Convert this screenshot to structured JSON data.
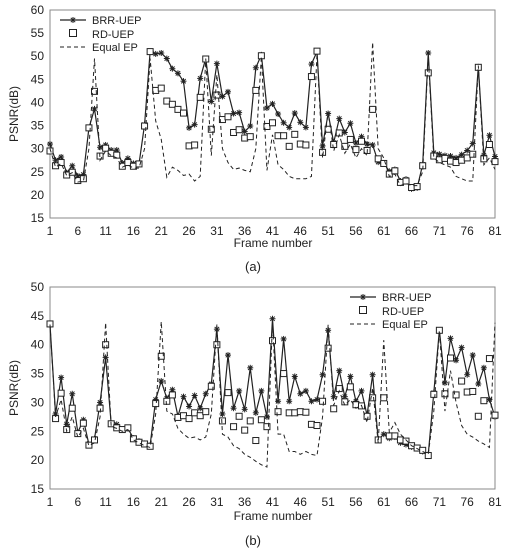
{
  "chart_data": [
    {
      "type": "line",
      "xlabel": "Frame number",
      "ylabel": "PSNR(dB)",
      "xlim": [
        1,
        81
      ],
      "ylim": [
        15,
        60
      ],
      "yticks": [
        15,
        20,
        25,
        30,
        35,
        40,
        45,
        50,
        55,
        60
      ],
      "xticks": [
        1,
        6,
        11,
        16,
        21,
        26,
        31,
        36,
        41,
        46,
        51,
        56,
        61,
        66,
        71,
        76,
        81
      ],
      "caption": "(a)",
      "legend_position": "top-left",
      "grid": false,
      "series": [
        {
          "name": "BRR-UEP",
          "style": "line-star",
          "color": "#222222",
          "values": [
            31.0,
            27.5,
            28.2,
            24.8,
            26.3,
            24.1,
            24.4,
            34.5,
            38.6,
            30.3,
            30.8,
            29.7,
            29.7,
            26.9,
            27.9,
            26.8,
            26.7,
            35.2,
            51.0,
            50.5,
            50.7,
            49.5,
            47.3,
            46.3,
            44.6,
            34.5,
            35.2,
            45.2,
            49.5,
            40.2,
            48.4,
            41.3,
            42.3,
            37.6,
            37.8,
            33.7,
            34.9,
            47.5,
            50.3,
            38.8,
            39.7,
            37.5,
            35.6,
            34.6,
            37.7,
            35.7,
            34.6,
            48.3,
            51.0,
            30.6,
            37.6,
            31.3,
            36.5,
            33.5,
            35.5,
            31.2,
            32.6,
            31.0,
            30.8,
            27.1,
            26.9,
            25.1,
            25.5,
            23.0,
            23.4,
            21.3,
            21.5,
            26.6,
            50.7,
            29.1,
            28.8,
            28.5,
            28.4,
            28.0,
            28.7,
            29.6,
            31.1,
            47.7,
            28.6,
            32.9,
            28.3
          ]
        },
        {
          "name": "RD-UEP",
          "style": "markers-square",
          "color": "#222222",
          "values": [
            29.5,
            26.3,
            27.0,
            24.3,
            24.9,
            23.1,
            23.5,
            34.5,
            42.4,
            28.4,
            30.1,
            29.0,
            28.6,
            26.2,
            27.0,
            26.2,
            26.7,
            34.9,
            51.0,
            42.6,
            43.1,
            40.3,
            39.6,
            38.5,
            37.7,
            30.6,
            30.8,
            41.1,
            49.4,
            34.2,
            41.6,
            36.3,
            36.9,
            33.5,
            34.1,
            32.3,
            32.6,
            42.6,
            50.1,
            34.8,
            35.6,
            32.8,
            32.8,
            30.5,
            33.1,
            31.0,
            30.8,
            45.6,
            51.1,
            29.2,
            34.2,
            30.9,
            33.4,
            30.5,
            32.0,
            29.8,
            31.6,
            29.6,
            38.5,
            27.8,
            26.8,
            24.5,
            25.2,
            22.7,
            23.0,
            21.6,
            21.8,
            26.3,
            46.4,
            28.4,
            27.6,
            27.9,
            27.3,
            27.0,
            27.5,
            28.0,
            28.8,
            47.6,
            27.8,
            30.9,
            27.2
          ]
        },
        {
          "name": "Equal EP",
          "style": "dashed",
          "color": "#222222",
          "values": [
            30.0,
            26.0,
            26.8,
            24.2,
            24.8,
            22.8,
            22.9,
            30.0,
            49.5,
            27.5,
            29.5,
            28.5,
            28.0,
            26.0,
            26.5,
            25.8,
            25.8,
            30.0,
            49.5,
            36.0,
            32.0,
            23.8,
            26.0,
            25.3,
            24.2,
            24.5,
            23.0,
            24.0,
            49.5,
            28.5,
            46.0,
            30.0,
            27.0,
            25.5,
            25.8,
            25.3,
            25.0,
            30.0,
            50.0,
            25.3,
            33.0,
            26.5,
            25.5,
            24.0,
            23.5,
            23.5,
            23.5,
            24.0,
            50.5,
            28.0,
            38.0,
            29.5,
            33.0,
            29.0,
            31.0,
            28.0,
            30.0,
            28.5,
            53.0,
            30.0,
            28.0,
            24.0,
            24.5,
            22.0,
            22.5,
            22.0,
            22.0,
            25.0,
            50.0,
            28.0,
            27.0,
            26.5,
            26.0,
            24.0,
            23.5,
            23.0,
            23.0,
            48.0,
            26.5,
            28.0,
            25.5
          ]
        }
      ]
    },
    {
      "type": "line",
      "xlabel": "Frame number",
      "ylabel": "PSNR(dB)",
      "xlim": [
        1,
        81
      ],
      "ylim": [
        15,
        50
      ],
      "yticks": [
        15,
        20,
        25,
        30,
        35,
        40,
        45,
        50
      ],
      "xticks": [
        1,
        6,
        11,
        16,
        21,
        26,
        31,
        36,
        41,
        46,
        51,
        56,
        61,
        66,
        71,
        76,
        81
      ],
      "caption": "(b)",
      "legend_position": "top-right",
      "grid": false,
      "series": [
        {
          "name": "BRR-UEP",
          "style": "line-star",
          "color": "#222222",
          "values": [
            43.5,
            28.0,
            34.3,
            26.2,
            31.5,
            24.8,
            27.0,
            22.7,
            23.7,
            30.0,
            37.8,
            26.3,
            26.2,
            25.3,
            25.5,
            23.8,
            23.3,
            22.9,
            22.6,
            30.5,
            33.7,
            30.7,
            32.2,
            27.6,
            31.0,
            29.3,
            31.2,
            29.0,
            31.5,
            33.2,
            42.7,
            28.0,
            38.2,
            29.0,
            32.0,
            28.8,
            36.0,
            28.2,
            32.0,
            27.5,
            44.5,
            30.2,
            41.0,
            30.2,
            34.5,
            31.5,
            32.0,
            30.2,
            30.5,
            34.8,
            42.5,
            31.0,
            35.5,
            31.0,
            34.5,
            30.2,
            32.0,
            27.8,
            34.8,
            23.5,
            24.5,
            23.8,
            24.0,
            23.0,
            22.7,
            22.3,
            22.0,
            21.5,
            21.0,
            31.7,
            42.5,
            33.4,
            41.1,
            37.3,
            39.5,
            34.8,
            38.2,
            33.2,
            36.0,
            30.5,
            27.5
          ]
        },
        {
          "name": "RD-UEP",
          "style": "markers-square",
          "color": "#222222",
          "values": [
            43.6,
            27.2,
            31.6,
            25.3,
            29.0,
            24.6,
            26.4,
            22.6,
            23.5,
            29.0,
            40.0,
            26.3,
            25.6,
            25.3,
            25.6,
            23.7,
            23.1,
            22.8,
            22.4,
            29.8,
            38.0,
            30.2,
            31.3,
            27.4,
            27.7,
            27.2,
            28.2,
            27.7,
            28.4,
            32.8,
            40.0,
            26.8,
            31.7,
            25.8,
            27.6,
            25.2,
            26.8,
            23.4,
            27.0,
            25.8,
            40.7,
            28.4,
            35.0,
            28.2,
            28.2,
            28.4,
            28.3,
            26.2,
            26.0,
            30.2,
            39.4,
            28.9,
            32.4,
            30.1,
            32.7,
            29.6,
            29.4,
            27.6,
            30.8,
            23.5,
            30.8,
            24.2,
            24.2,
            23.5,
            23.3,
            22.5,
            22.1,
            21.7,
            20.8,
            31.4,
            42.5,
            31.5,
            37.7,
            31.3,
            33.7,
            31.8,
            31.9,
            27.6,
            30.3,
            37.6,
            27.8
          ]
        },
        {
          "name": "Equal EP",
          "style": "dashed",
          "color": "#222222",
          "values": [
            43.5,
            27.5,
            30.5,
            25.0,
            27.5,
            24.0,
            25.5,
            22.5,
            23.0,
            27.5,
            43.8,
            25.8,
            25.5,
            25.0,
            25.3,
            23.5,
            23.0,
            22.5,
            22.2,
            28.0,
            44.0,
            28.5,
            28.0,
            25.5,
            24.5,
            23.8,
            24.0,
            23.5,
            24.0,
            28.0,
            43.5,
            24.5,
            24.0,
            22.5,
            22.0,
            21.0,
            20.5,
            19.8,
            19.2,
            18.8,
            44.0,
            24.5,
            24.5,
            21.5,
            21.5,
            21.0,
            21.5,
            21.0,
            20.8,
            27.5,
            43.5,
            29.5,
            32.0,
            29.5,
            30.5,
            29.0,
            29.5,
            26.5,
            32.5,
            23.0,
            40.8,
            24.8,
            26.5,
            24.5,
            23.5,
            22.5,
            22.0,
            21.5,
            21.0,
            28.5,
            42.5,
            28.5,
            35.5,
            30.0,
            26.0,
            24.5,
            24.0,
            23.3,
            22.8,
            22.2,
            43.8
          ]
        }
      ]
    }
  ]
}
